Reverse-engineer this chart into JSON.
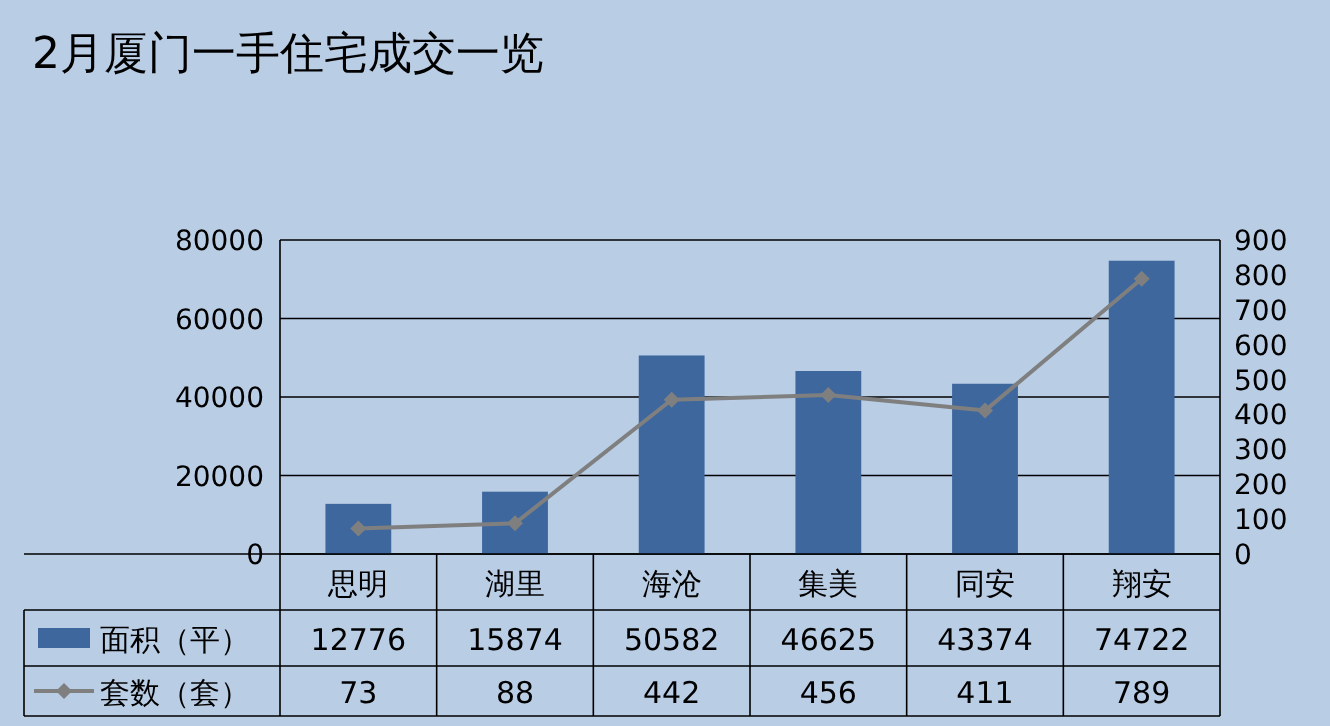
{
  "chart_data": {
    "type": "bar",
    "title": "2月厦门一手住宅成交一览",
    "categories": [
      "思明",
      "湖里",
      "海沧",
      "集美",
      "同安",
      "翔安"
    ],
    "series": [
      {
        "name": "面积（平）",
        "color": "#3e679e",
        "values": [
          12776,
          15874,
          50582,
          46625,
          43374,
          74722
        ]
      },
      {
        "name": "套数（套）",
        "type": "line",
        "axis": "y2",
        "color": "#7f7f7f",
        "values": [
          73,
          88,
          442,
          456,
          411,
          789
        ]
      }
    ],
    "ylim": [
      0,
      80000
    ],
    "yticks": [
      0,
      20000,
      40000,
      60000,
      80000
    ],
    "y2lim": [
      0,
      900
    ],
    "y2ticks": [
      0,
      100,
      200,
      300,
      400,
      500,
      600,
      700,
      800,
      900
    ],
    "grid": "y",
    "legend": "bottom",
    "marker": "diamond",
    "data_labels": true
  }
}
